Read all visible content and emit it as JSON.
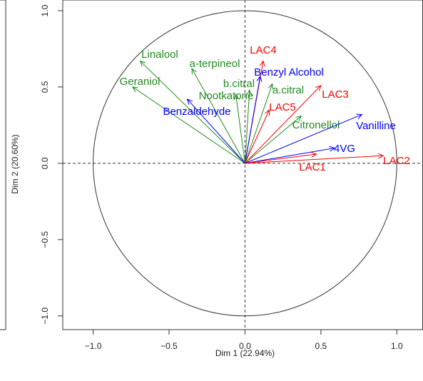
{
  "chart_data": {
    "type": "pca-variables",
    "xlabel": "Dim 1 (22.94%)",
    "ylabel": "Dim 2 (20.60%)",
    "xlim": [
      -1.2,
      1.17
    ],
    "ylim": [
      -1.09,
      1.07
    ],
    "xticks": [
      {
        "value": -1.0,
        "label": "−1.0"
      },
      {
        "value": -0.5,
        "label": "−0.5"
      },
      {
        "value": 0.0,
        "label": "0.0"
      },
      {
        "value": 0.5,
        "label": "0.5"
      },
      {
        "value": 1.0,
        "label": "1.0"
      }
    ],
    "yticks": [
      {
        "value": -1.0,
        "label": "−1.0"
      },
      {
        "value": -0.5,
        "label": "−0.5"
      },
      {
        "value": 0.0,
        "label": "0.0"
      },
      {
        "value": 0.5,
        "label": "0.5"
      },
      {
        "value": 1.0,
        "label": "1.0"
      }
    ],
    "vectors": [
      {
        "name": "Linalool",
        "x": -0.69,
        "y": 0.67,
        "color": "#228B22"
      },
      {
        "name": "a-terpineol",
        "x": -0.35,
        "y": 0.62,
        "color": "#228B22"
      },
      {
        "name": "Geraniol",
        "x": -0.74,
        "y": 0.5,
        "color": "#228B22"
      },
      {
        "name": "Benzaldehyde",
        "x": -0.38,
        "y": 0.42,
        "color": "#0000FF"
      },
      {
        "name": "Nootkatone",
        "x": -0.06,
        "y": 0.45,
        "color": "#228B22"
      },
      {
        "name": "b.citral",
        "x": 0.03,
        "y": 0.48,
        "color": "#228B22"
      },
      {
        "name": "LAC4",
        "x": 0.12,
        "y": 0.67,
        "color": "#FF0000"
      },
      {
        "name": "Benzyl Alcohol",
        "x": 0.1,
        "y": 0.57,
        "color": "#0000FF"
      },
      {
        "name": "a.citral",
        "x": 0.18,
        "y": 0.52,
        "color": "#228B22"
      },
      {
        "name": "LAC3",
        "x": 0.5,
        "y": 0.51,
        "color": "#FF0000"
      },
      {
        "name": "LAC5",
        "x": 0.16,
        "y": 0.35,
        "color": "#FF0000"
      },
      {
        "name": "Citronellol",
        "x": 0.37,
        "y": 0.31,
        "color": "#228B22"
      },
      {
        "name": "Vanilline",
        "x": 0.77,
        "y": 0.32,
        "color": "#0000FF"
      },
      {
        "name": "4VG",
        "x": 0.59,
        "y": 0.1,
        "color": "#0000FF"
      },
      {
        "name": "LAC1",
        "x": 0.47,
        "y": 0.06,
        "color": "#FF0000"
      },
      {
        "name": "LAC2",
        "x": 0.91,
        "y": 0.05,
        "color": "#FF0000"
      }
    ]
  }
}
